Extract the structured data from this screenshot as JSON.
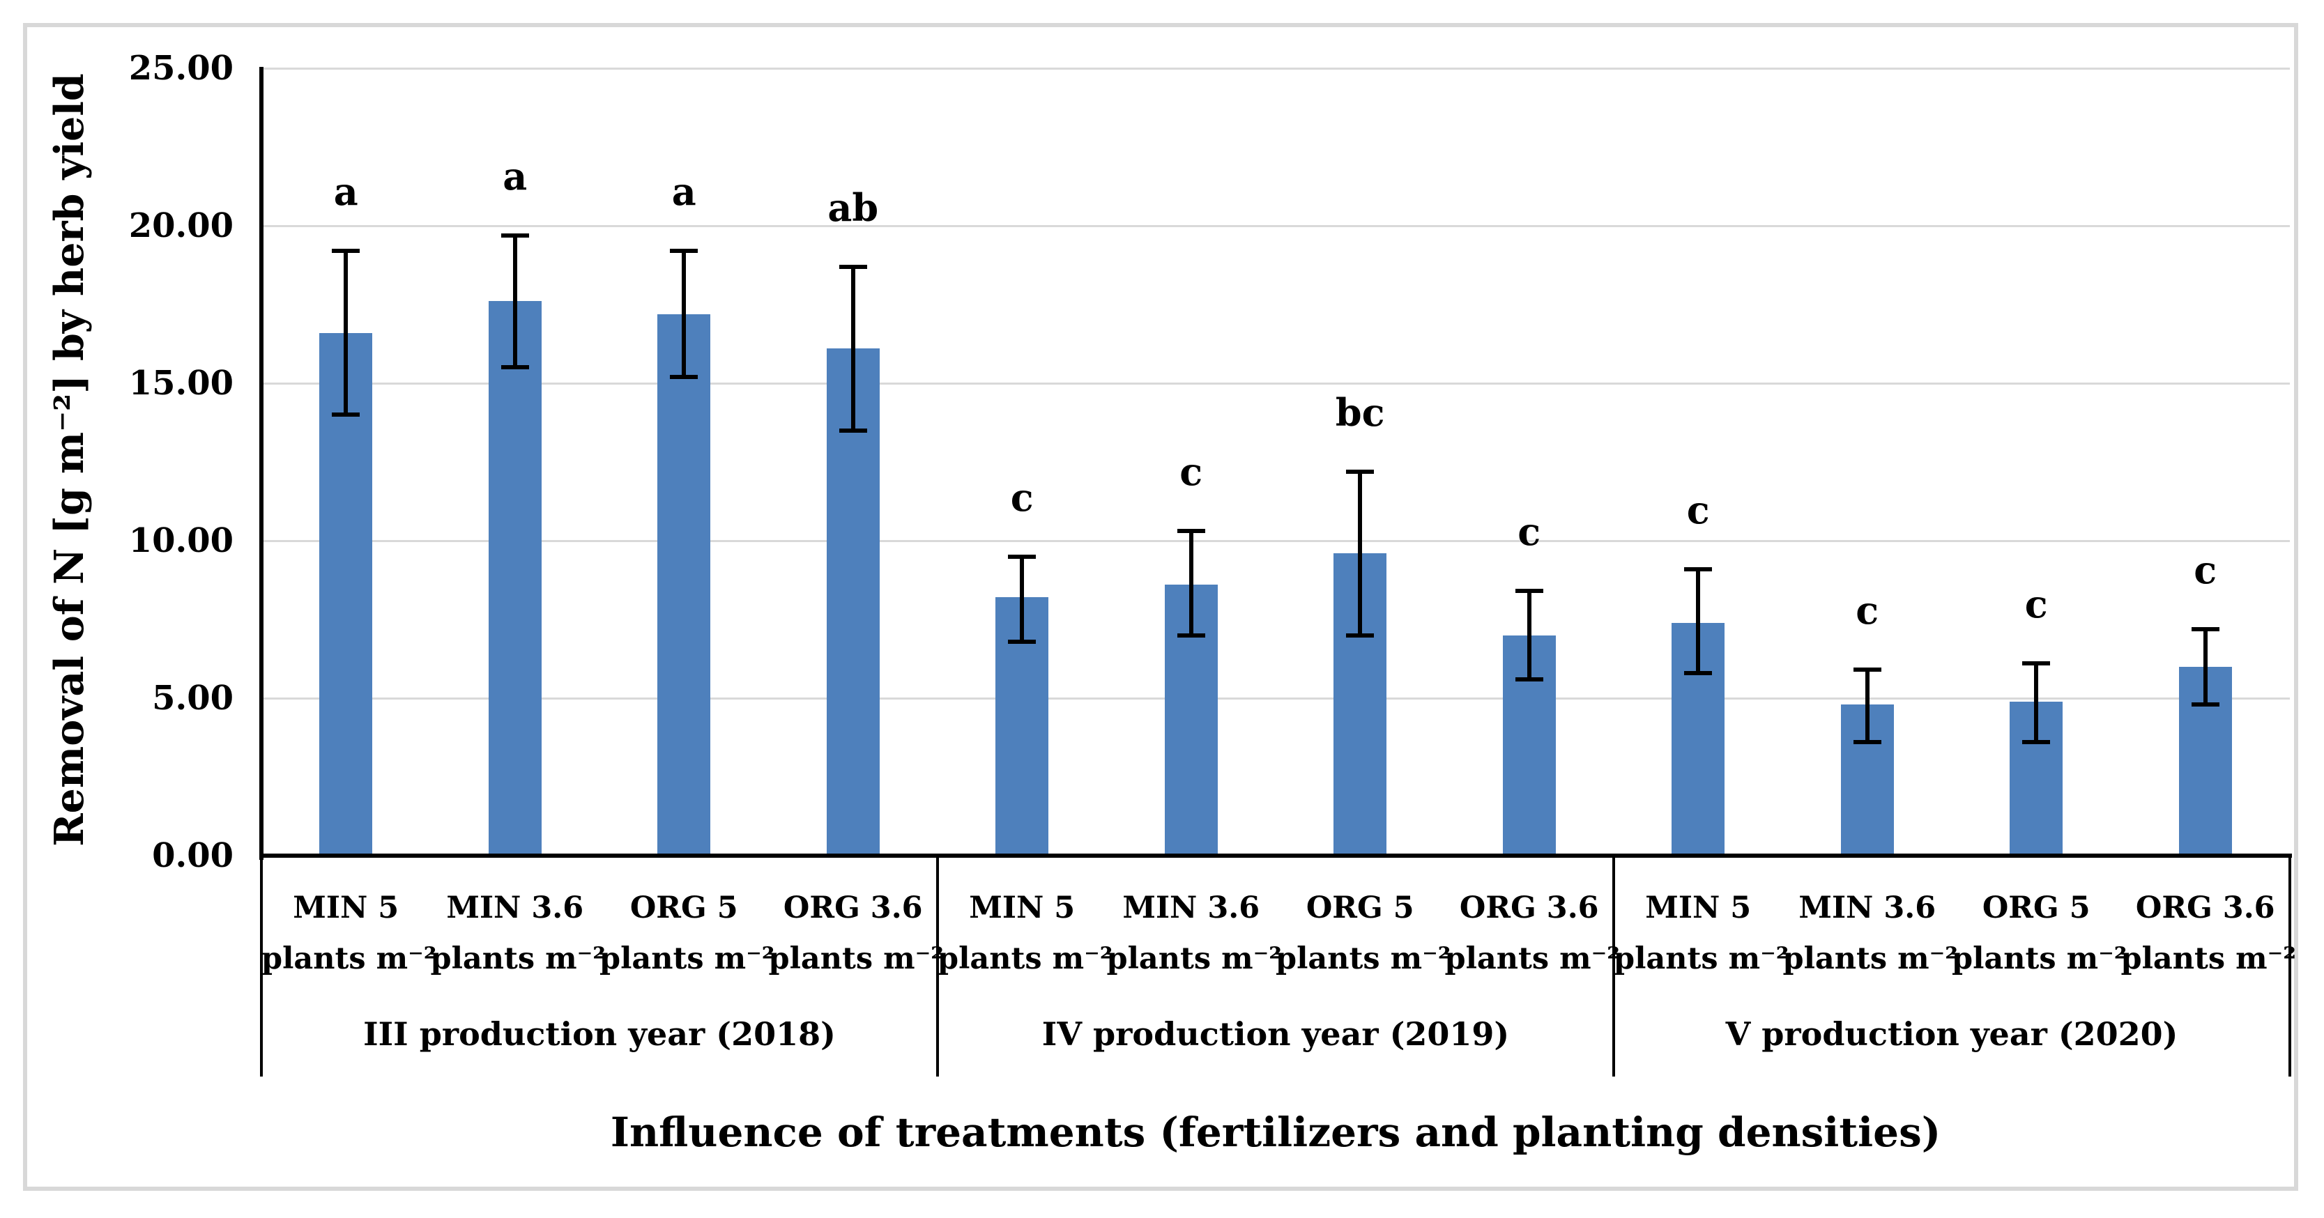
{
  "chart_data": {
    "type": "bar",
    "title": "",
    "xlabel": "Influence of treatments (fertilizers and planting densities)",
    "ylabel": "Removal of N [g m⁻²] by herb yield",
    "ylim": [
      0,
      25
    ],
    "grid": true,
    "legend": "none",
    "bar_color": "#4E80BC",
    "error_bar_color": "#000000",
    "gridline_color": "#D9D9D9",
    "axis_color": "#000000",
    "figure_border_color": "#D8D8D8",
    "y_ticks": [
      {
        "value": 0,
        "label": "0.00"
      },
      {
        "value": 5,
        "label": "5.00"
      },
      {
        "value": 10,
        "label": "10.00"
      },
      {
        "value": 15,
        "label": "15.00"
      },
      {
        "value": 20,
        "label": "20.00"
      },
      {
        "value": 25,
        "label": "25.00"
      }
    ],
    "groups": [
      {
        "label": "III production year (2018)",
        "bars": [
          {
            "category": "MIN 5",
            "unit": "plants m⁻²",
            "value": 16.6,
            "err_low": 14.0,
            "err_high": 19.2,
            "sig_letter": "a"
          },
          {
            "category": "MIN 3.6",
            "unit": "plants m⁻²",
            "value": 17.6,
            "err_low": 15.5,
            "err_high": 19.7,
            "sig_letter": "a"
          },
          {
            "category": "ORG 5",
            "unit": "plants m⁻²",
            "value": 17.2,
            "err_low": 15.2,
            "err_high": 19.2,
            "sig_letter": "a"
          },
          {
            "category": "ORG 3.6",
            "unit": "plants m⁻²",
            "value": 16.1,
            "err_low": 13.5,
            "err_high": 18.7,
            "sig_letter": "ab"
          }
        ]
      },
      {
        "label": "IV production year (2019)",
        "bars": [
          {
            "category": "MIN 5",
            "unit": "plants m⁻²",
            "value": 8.2,
            "err_low": 6.8,
            "err_high": 9.5,
            "sig_letter": "c"
          },
          {
            "category": "MIN 3.6",
            "unit": "plants m⁻²",
            "value": 8.6,
            "err_low": 7.0,
            "err_high": 10.3,
            "sig_letter": "c"
          },
          {
            "category": "ORG 5",
            "unit": "plants m⁻²",
            "value": 9.6,
            "err_low": 7.0,
            "err_high": 12.2,
            "sig_letter": "bc"
          },
          {
            "category": "ORG 3.6",
            "unit": "plants m⁻²",
            "value": 7.0,
            "err_low": 5.6,
            "err_high": 8.4,
            "sig_letter": "c"
          }
        ]
      },
      {
        "label": "V production year (2020)",
        "bars": [
          {
            "category": "MIN 5",
            "unit": "plants m⁻²",
            "value": 7.4,
            "err_low": 5.8,
            "err_high": 9.1,
            "sig_letter": "c"
          },
          {
            "category": "MIN 3.6",
            "unit": "plants m⁻²",
            "value": 4.8,
            "err_low": 3.6,
            "err_high": 5.9,
            "sig_letter": "c"
          },
          {
            "category": "ORG 5",
            "unit": "plants m⁻²",
            "value": 4.9,
            "err_low": 3.6,
            "err_high": 6.1,
            "sig_letter": "c"
          },
          {
            "category": "ORG 3.6",
            "unit": "plants m⁻²",
            "value": 6.0,
            "err_low": 4.8,
            "err_high": 7.2,
            "sig_letter": "c"
          }
        ]
      }
    ]
  }
}
